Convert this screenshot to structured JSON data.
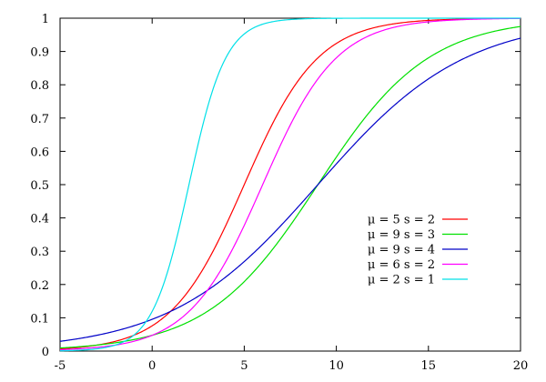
{
  "chart_data": {
    "type": "line",
    "title": "",
    "xlabel": "",
    "ylabel": "",
    "xlim": [
      -5,
      20
    ],
    "ylim": [
      0,
      1
    ],
    "x_ticks": [
      -5,
      0,
      5,
      10,
      15,
      20
    ],
    "x_tick_labels": [
      "-5",
      "0",
      "5",
      "10",
      "15",
      "20"
    ],
    "y_ticks": [
      0,
      0.1,
      0.2,
      0.3,
      0.4,
      0.5,
      0.6,
      0.7,
      0.8,
      0.9,
      1
    ],
    "y_tick_labels": [
      "0",
      "0.1",
      "0.2",
      "0.3",
      "0.4",
      "0.5",
      "0.6",
      "0.7",
      "0.8",
      "0.9",
      "1"
    ],
    "grid": false,
    "legend_position": "right-center",
    "series": [
      {
        "name": "μ = 5 s = 2",
        "mu": 5,
        "s": 2,
        "color": "#ff0000"
      },
      {
        "name": "μ = 9 s = 3",
        "mu": 9,
        "s": 3,
        "color": "#00e000"
      },
      {
        "name": "μ = 9 s = 4",
        "mu": 9,
        "s": 4,
        "color": "#0000c8"
      },
      {
        "name": "μ = 6 s = 2",
        "mu": 6,
        "s": 2,
        "color": "#ff00ff"
      },
      {
        "name": "μ = 2 s = 1",
        "mu": 2,
        "s": 1,
        "color": "#00e0e8"
      }
    ]
  }
}
